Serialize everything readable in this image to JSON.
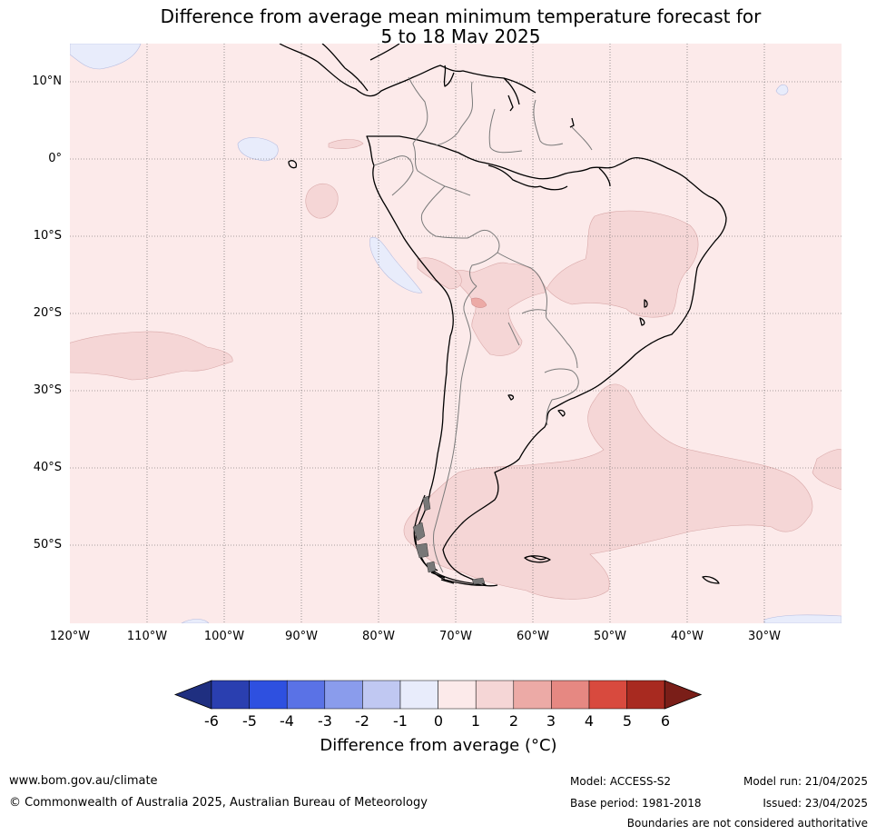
{
  "title": {
    "line1": "Difference from average mean minimum temperature forecast for",
    "line2": "5 to 18 May 2025"
  },
  "axes": {
    "lat_labels": [
      "10°N",
      "0°",
      "10°S",
      "20°S",
      "30°S",
      "40°S",
      "50°S"
    ],
    "lon_labels": [
      "120°W",
      "110°W",
      "100°W",
      "90°W",
      "80°W",
      "70°W",
      "60°W",
      "50°W",
      "40°W",
      "30°W"
    ]
  },
  "legend": {
    "tick_labels": [
      "-6",
      "-5",
      "-4",
      "-3",
      "-2",
      "-1",
      "0",
      "1",
      "2",
      "3",
      "4",
      "5",
      "6"
    ],
    "label": "Difference from average (°C)",
    "colors": [
      "#1f2f80",
      "#2a3fb0",
      "#2e50e0",
      "#5a72e6",
      "#8a9cec",
      "#c0c8f2",
      "#e8ecfb",
      "#fceaea",
      "#f5d6d6",
      "#ecaaa6",
      "#e68882",
      "#d84a3e",
      "#a82a20",
      "#7a1e18"
    ]
  },
  "map_fills": {
    "ocean_land": "#fceaea",
    "warm_anomaly": "#f5d6d6",
    "cool_anomaly": "#e8ecfb"
  },
  "footer": {
    "website": "www.bom.gov.au/climate",
    "copyright": "© Commonwealth of Australia 2025, Australian Bureau of Meteorology",
    "model": "Model: ACCESS-S2",
    "base_period": "Base period: 1981-2018",
    "model_run": "Model run: 21/04/2025",
    "issued": "Issued: 23/04/2025",
    "disclaimer": "Boundaries are not considered authoritative"
  }
}
